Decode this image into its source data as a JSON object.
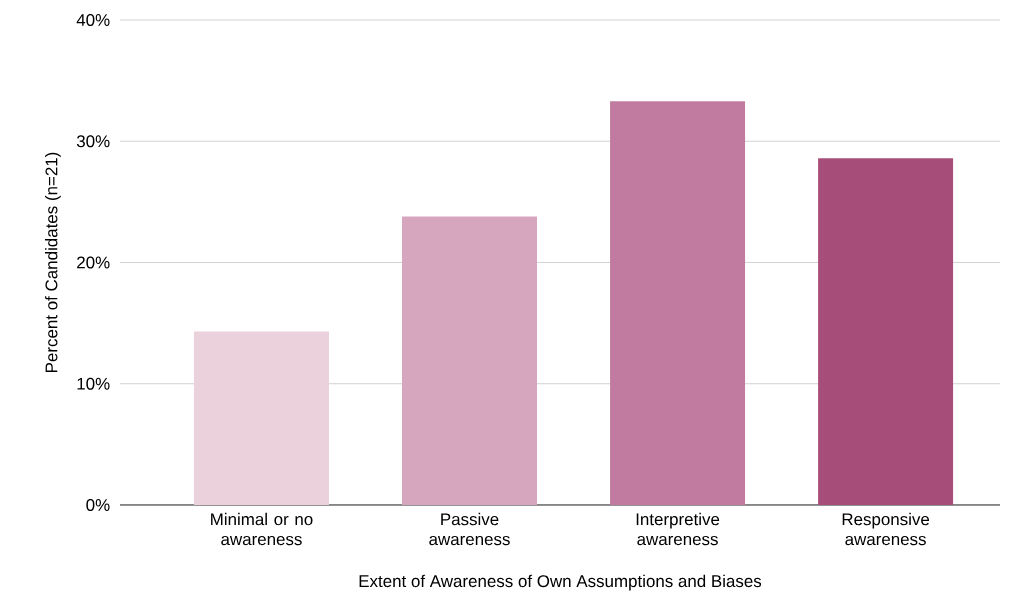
{
  "chart_data": {
    "type": "bar",
    "xlabel": "Extent of Awareness of Own Assumptions and Biases",
    "ylabel": "Percent of Candidates (n=21)",
    "categories": [
      "Minimal or no awareness",
      "Passive awareness",
      "Interpretive awareness",
      "Responsive awareness"
    ],
    "values": [
      14.3,
      23.8,
      33.3,
      28.6
    ],
    "colors": [
      "#ead1dc",
      "#d5a6bd",
      "#c27ba0",
      "#a64d79"
    ],
    "ylim": [
      0,
      40
    ],
    "yticks": [
      {
        "value": 0,
        "label": "0%"
      },
      {
        "value": 10,
        "label": "10%"
      },
      {
        "value": 20,
        "label": "20%"
      },
      {
        "value": 30,
        "label": "30%"
      },
      {
        "value": 40,
        "label": "40%"
      }
    ],
    "grid": "y"
  }
}
